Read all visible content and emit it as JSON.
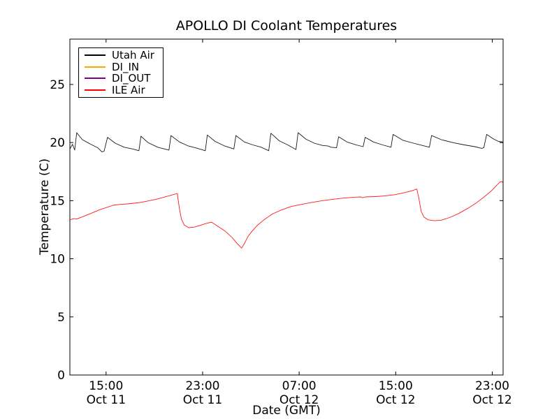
{
  "figure": {
    "title": "APOLLO DI Coolant Temperatures"
  },
  "chart_data": {
    "type": "line",
    "title": "APOLLO DI Coolant Temperatures",
    "xlabel": "Date (GMT)",
    "ylabel": "Temperature (C)",
    "grid": false,
    "legend_position": "upper-left",
    "x_axis": {
      "unit": "hours since Oct 11 00:00 GMT",
      "min": 12.0,
      "max": 47.9,
      "ticks": [
        {
          "hour": 15,
          "time": "15:00",
          "date": "Oct 11"
        },
        {
          "hour": 23,
          "time": "23:00",
          "date": "Oct 11"
        },
        {
          "hour": 31,
          "time": "07:00",
          "date": "Oct 12"
        },
        {
          "hour": 39,
          "time": "15:00",
          "date": "Oct 12"
        },
        {
          "hour": 47,
          "time": "23:00",
          "date": "Oct 12"
        }
      ]
    },
    "y_axis": {
      "min": 0,
      "max": 28.9,
      "ticks": [
        0,
        5,
        10,
        15,
        20,
        25
      ]
    },
    "series": [
      {
        "name": "Utah Air",
        "color": "#000000",
        "points": [
          [
            12.0,
            19.45
          ],
          [
            12.22,
            19.85
          ],
          [
            12.4,
            19.35
          ],
          [
            12.57,
            20.85
          ],
          [
            13.03,
            20.25
          ],
          [
            13.73,
            19.85
          ],
          [
            14.31,
            19.55
          ],
          [
            14.65,
            19.2
          ],
          [
            14.83,
            19.25
          ],
          [
            15.12,
            20.45
          ],
          [
            15.75,
            19.95
          ],
          [
            16.5,
            19.6
          ],
          [
            17.2,
            19.45
          ],
          [
            17.72,
            19.3
          ],
          [
            17.89,
            20.55
          ],
          [
            18.47,
            20.0
          ],
          [
            19.28,
            19.6
          ],
          [
            20.21,
            19.35
          ],
          [
            20.38,
            20.6
          ],
          [
            21.08,
            20.05
          ],
          [
            21.83,
            19.7
          ],
          [
            22.58,
            19.5
          ],
          [
            23.22,
            19.3
          ],
          [
            23.39,
            20.65
          ],
          [
            24.03,
            20.1
          ],
          [
            24.84,
            19.7
          ],
          [
            25.59,
            19.45
          ],
          [
            25.76,
            20.6
          ],
          [
            26.46,
            20.05
          ],
          [
            27.16,
            19.8
          ],
          [
            27.85,
            19.6
          ],
          [
            28.48,
            19.3
          ],
          [
            28.66,
            20.8
          ],
          [
            29.35,
            20.15
          ],
          [
            30.05,
            19.8
          ],
          [
            30.74,
            19.4
          ],
          [
            30.91,
            20.85
          ],
          [
            31.55,
            20.3
          ],
          [
            32.25,
            19.95
          ],
          [
            32.94,
            19.75
          ],
          [
            33.4,
            19.7
          ],
          [
            33.63,
            19.6
          ],
          [
            34.1,
            19.55
          ],
          [
            34.27,
            20.5
          ],
          [
            34.96,
            20.05
          ],
          [
            35.72,
            19.8
          ],
          [
            36.3,
            19.65
          ],
          [
            36.47,
            20.45
          ],
          [
            37.16,
            20.05
          ],
          [
            37.92,
            19.8
          ],
          [
            38.61,
            19.6
          ],
          [
            38.78,
            20.7
          ],
          [
            39.59,
            20.2
          ],
          [
            40.46,
            19.95
          ],
          [
            41.21,
            19.75
          ],
          [
            41.79,
            19.6
          ],
          [
            41.97,
            20.6
          ],
          [
            42.78,
            20.25
          ],
          [
            43.7,
            20.0
          ],
          [
            44.69,
            19.8
          ],
          [
            45.55,
            19.65
          ],
          [
            46.13,
            19.5
          ],
          [
            46.3,
            19.55
          ],
          [
            46.54,
            20.7
          ],
          [
            47.12,
            20.3
          ],
          [
            47.52,
            20.1
          ],
          [
            47.87,
            20.05
          ]
        ]
      },
      {
        "name": "DI_IN",
        "color": "#ffa500",
        "points": []
      },
      {
        "name": "DI_OUT",
        "color": "#800080",
        "points": []
      },
      {
        "name": "ILE Air",
        "color": "#ff0000",
        "points": [
          [
            12.0,
            13.35
          ],
          [
            12.34,
            13.45
          ],
          [
            12.57,
            13.42
          ],
          [
            13.03,
            13.6
          ],
          [
            13.73,
            13.9
          ],
          [
            14.42,
            14.2
          ],
          [
            15.0,
            14.4
          ],
          [
            15.58,
            14.6
          ],
          [
            16.16,
            14.68
          ],
          [
            16.74,
            14.72
          ],
          [
            17.31,
            14.78
          ],
          [
            17.89,
            14.85
          ],
          [
            18.47,
            14.97
          ],
          [
            19.05,
            15.1
          ],
          [
            19.63,
            15.25
          ],
          [
            20.21,
            15.42
          ],
          [
            20.67,
            15.55
          ],
          [
            20.9,
            15.62
          ],
          [
            21.08,
            14.3
          ],
          [
            21.25,
            13.4
          ],
          [
            21.48,
            12.9
          ],
          [
            21.83,
            12.68
          ],
          [
            22.29,
            12.72
          ],
          [
            22.87,
            12.9
          ],
          [
            23.33,
            13.05
          ],
          [
            23.74,
            13.15
          ],
          [
            24.26,
            12.8
          ],
          [
            24.84,
            12.4
          ],
          [
            25.42,
            11.85
          ],
          [
            25.88,
            11.3
          ],
          [
            26.23,
            10.92
          ],
          [
            26.46,
            11.3
          ],
          [
            26.75,
            11.9
          ],
          [
            27.04,
            12.3
          ],
          [
            27.51,
            12.85
          ],
          [
            28.08,
            13.35
          ],
          [
            28.77,
            13.85
          ],
          [
            29.53,
            14.2
          ],
          [
            30.33,
            14.5
          ],
          [
            31.2,
            14.68
          ],
          [
            32.07,
            14.85
          ],
          [
            32.94,
            15.0
          ],
          [
            33.81,
            15.12
          ],
          [
            34.67,
            15.22
          ],
          [
            35.54,
            15.3
          ],
          [
            36.12,
            15.32
          ],
          [
            36.24,
            15.25
          ],
          [
            36.47,
            15.32
          ],
          [
            37.34,
            15.35
          ],
          [
            38.15,
            15.42
          ],
          [
            38.96,
            15.52
          ],
          [
            39.77,
            15.7
          ],
          [
            40.35,
            15.85
          ],
          [
            40.75,
            16.0
          ],
          [
            40.92,
            15.2
          ],
          [
            41.1,
            14.1
          ],
          [
            41.33,
            13.6
          ],
          [
            41.68,
            13.35
          ],
          [
            42.2,
            13.27
          ],
          [
            42.78,
            13.32
          ],
          [
            43.47,
            13.55
          ],
          [
            44.23,
            13.9
          ],
          [
            44.98,
            14.35
          ],
          [
            45.67,
            14.8
          ],
          [
            46.36,
            15.35
          ],
          [
            46.94,
            15.85
          ],
          [
            47.35,
            16.3
          ],
          [
            47.64,
            16.6
          ],
          [
            47.81,
            16.65
          ],
          [
            47.87,
            16.55
          ]
        ]
      }
    ]
  }
}
